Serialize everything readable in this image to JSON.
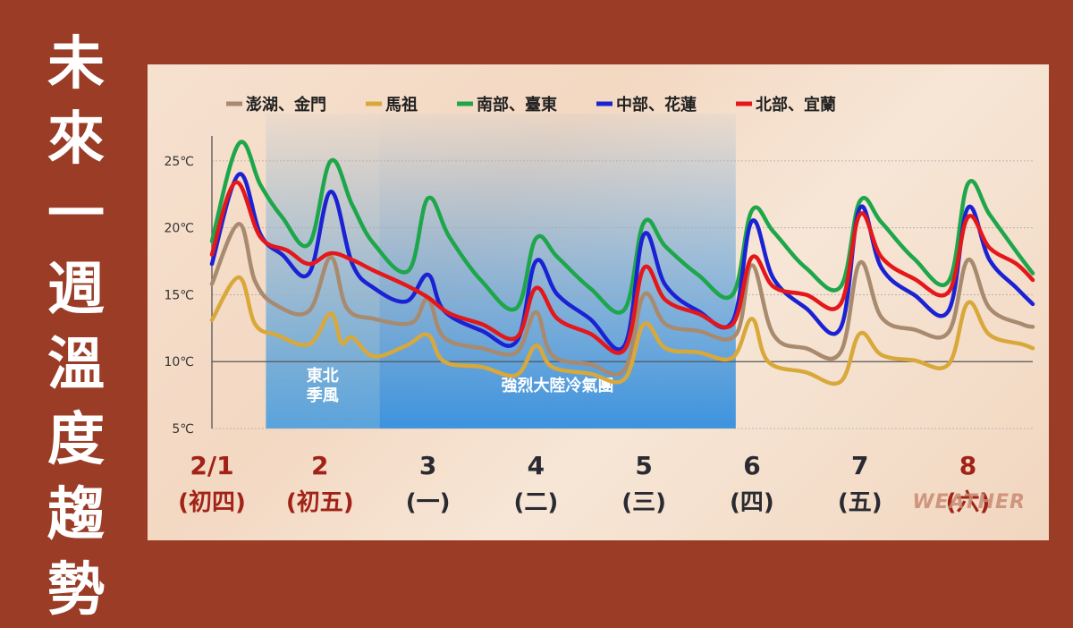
{
  "title_chars": [
    "未",
    "來",
    "一",
    "週",
    "溫",
    "度",
    "趨",
    "勢"
  ],
  "watermark": "WEATHER",
  "chart_data": {
    "type": "line",
    "unit": "℃",
    "ylim": [
      5,
      27
    ],
    "yticks": [
      5,
      10,
      15,
      20,
      25
    ],
    "ytick_labels": [
      "5℃",
      "10℃",
      "15℃",
      "20℃",
      "25℃"
    ],
    "x_range": [
      0,
      7.6
    ],
    "days": [
      {
        "date": "2/1",
        "weekday": "(初四)",
        "x": 0.0,
        "color": "#a12318"
      },
      {
        "date": "2",
        "weekday": "(初五)",
        "x": 1.0,
        "color": "#a12318"
      },
      {
        "date": "3",
        "weekday": "(一)",
        "x": 2.0,
        "color": "#2a2a33"
      },
      {
        "date": "4",
        "weekday": "(二)",
        "x": 3.0,
        "color": "#2a2a33"
      },
      {
        "date": "5",
        "weekday": "(三)",
        "x": 4.0,
        "color": "#2a2a33"
      },
      {
        "date": "6",
        "weekday": "(四)",
        "x": 5.0,
        "color": "#2a2a33"
      },
      {
        "date": "7",
        "weekday": "(五)",
        "x": 6.0,
        "color": "#2a2a33"
      },
      {
        "date": "8",
        "weekday": "(六)",
        "x": 7.0,
        "color": "#a12318"
      }
    ],
    "shaded_regions": [
      {
        "label_lines": [
          "東北",
          "季風"
        ],
        "x_start": 0.5,
        "x_end": 1.55,
        "color": "#5aa3dc"
      },
      {
        "label_lines": [
          "強烈大陸冷氣團"
        ],
        "x_start": 1.55,
        "x_end": 4.85,
        "color": "#3d93de"
      }
    ],
    "series": [
      {
        "name": "澎湖、金門",
        "color": "#a88a6f",
        "points": [
          [
            0.0,
            15.8
          ],
          [
            0.25,
            20.3
          ],
          [
            0.4,
            16.0
          ],
          [
            0.6,
            14.2
          ],
          [
            0.9,
            13.8
          ],
          [
            1.1,
            17.8
          ],
          [
            1.25,
            14.0
          ],
          [
            1.5,
            13.2
          ],
          [
            1.85,
            12.9
          ],
          [
            2.0,
            14.7
          ],
          [
            2.15,
            11.8
          ],
          [
            2.5,
            11.0
          ],
          [
            2.82,
            10.7
          ],
          [
            3.0,
            13.7
          ],
          [
            3.15,
            10.5
          ],
          [
            3.5,
            9.8
          ],
          [
            3.82,
            9.4
          ],
          [
            4.0,
            15.0
          ],
          [
            4.2,
            12.8
          ],
          [
            4.5,
            12.3
          ],
          [
            4.85,
            12.0
          ],
          [
            5.0,
            17.2
          ],
          [
            5.2,
            12.0
          ],
          [
            5.5,
            11.0
          ],
          [
            5.82,
            10.7
          ],
          [
            6.0,
            17.4
          ],
          [
            6.2,
            13.3
          ],
          [
            6.5,
            12.4
          ],
          [
            6.82,
            12.2
          ],
          [
            7.0,
            17.6
          ],
          [
            7.2,
            14.0
          ],
          [
            7.5,
            12.8
          ],
          [
            7.6,
            12.6
          ]
        ]
      },
      {
        "name": "馬祖",
        "color": "#d9a83b",
        "points": [
          [
            0.0,
            13.1
          ],
          [
            0.25,
            16.3
          ],
          [
            0.4,
            12.8
          ],
          [
            0.6,
            12.0
          ],
          [
            0.9,
            11.3
          ],
          [
            1.1,
            13.6
          ],
          [
            1.2,
            11.4
          ],
          [
            1.3,
            11.8
          ],
          [
            1.5,
            10.4
          ],
          [
            1.8,
            11.2
          ],
          [
            2.0,
            12.0
          ],
          [
            2.15,
            10.0
          ],
          [
            2.5,
            9.6
          ],
          [
            2.82,
            9.0
          ],
          [
            3.0,
            11.2
          ],
          [
            3.15,
            9.6
          ],
          [
            3.5,
            9.1
          ],
          [
            3.82,
            8.7
          ],
          [
            4.0,
            12.8
          ],
          [
            4.2,
            11.0
          ],
          [
            4.5,
            10.7
          ],
          [
            4.82,
            10.3
          ],
          [
            5.0,
            13.2
          ],
          [
            5.15,
            10.0
          ],
          [
            5.5,
            9.2
          ],
          [
            5.82,
            8.5
          ],
          [
            6.0,
            12.1
          ],
          [
            6.2,
            10.5
          ],
          [
            6.5,
            10.1
          ],
          [
            6.82,
            9.8
          ],
          [
            7.0,
            14.4
          ],
          [
            7.2,
            12.0
          ],
          [
            7.5,
            11.3
          ],
          [
            7.6,
            11.0
          ]
        ]
      },
      {
        "name": "南部、臺東",
        "color": "#1ea64b",
        "points": [
          [
            0.0,
            19.0
          ],
          [
            0.25,
            26.3
          ],
          [
            0.45,
            23.2
          ],
          [
            0.65,
            20.8
          ],
          [
            0.9,
            18.8
          ],
          [
            1.1,
            25.0
          ],
          [
            1.3,
            21.7
          ],
          [
            1.5,
            18.8
          ],
          [
            1.82,
            16.8
          ],
          [
            2.0,
            22.2
          ],
          [
            2.2,
            19.3
          ],
          [
            2.5,
            16.0
          ],
          [
            2.82,
            14.0
          ],
          [
            3.0,
            19.2
          ],
          [
            3.2,
            17.8
          ],
          [
            3.5,
            15.5
          ],
          [
            3.82,
            13.9
          ],
          [
            4.0,
            20.4
          ],
          [
            4.2,
            18.6
          ],
          [
            4.5,
            16.5
          ],
          [
            4.82,
            15.0
          ],
          [
            5.0,
            21.3
          ],
          [
            5.2,
            19.7
          ],
          [
            5.5,
            17.0
          ],
          [
            5.82,
            15.6
          ],
          [
            6.0,
            22.0
          ],
          [
            6.2,
            20.4
          ],
          [
            6.5,
            17.7
          ],
          [
            6.82,
            16.0
          ],
          [
            7.0,
            23.3
          ],
          [
            7.2,
            21.0
          ],
          [
            7.45,
            18.2
          ],
          [
            7.6,
            16.6
          ]
        ]
      },
      {
        "name": "中部、花蓮",
        "color": "#1b22d4",
        "points": [
          [
            0.0,
            17.3
          ],
          [
            0.25,
            24.0
          ],
          [
            0.45,
            19.5
          ],
          [
            0.65,
            18.0
          ],
          [
            0.9,
            16.6
          ],
          [
            1.1,
            22.7
          ],
          [
            1.3,
            17.3
          ],
          [
            1.5,
            15.5
          ],
          [
            1.8,
            14.5
          ],
          [
            2.0,
            16.5
          ],
          [
            2.15,
            13.8
          ],
          [
            2.5,
            12.3
          ],
          [
            2.82,
            11.5
          ],
          [
            3.0,
            17.5
          ],
          [
            3.2,
            15.0
          ],
          [
            3.5,
            13.2
          ],
          [
            3.82,
            11.2
          ],
          [
            4.0,
            19.5
          ],
          [
            4.2,
            15.7
          ],
          [
            4.5,
            13.8
          ],
          [
            4.82,
            13.0
          ],
          [
            5.0,
            20.5
          ],
          [
            5.2,
            16.2
          ],
          [
            5.5,
            14.0
          ],
          [
            5.82,
            12.5
          ],
          [
            6.0,
            21.5
          ],
          [
            6.2,
            17.0
          ],
          [
            6.5,
            15.0
          ],
          [
            6.82,
            13.8
          ],
          [
            7.0,
            21.5
          ],
          [
            7.2,
            17.6
          ],
          [
            7.45,
            15.5
          ],
          [
            7.6,
            14.3
          ]
        ]
      },
      {
        "name": "北部、宜蘭",
        "color": "#e4171b",
        "points": [
          [
            0.0,
            18.0
          ],
          [
            0.22,
            23.4
          ],
          [
            0.45,
            19.3
          ],
          [
            0.7,
            18.3
          ],
          [
            0.9,
            17.3
          ],
          [
            1.1,
            18.1
          ],
          [
            1.3,
            17.6
          ],
          [
            1.5,
            16.8
          ],
          [
            1.8,
            15.7
          ],
          [
            2.0,
            14.8
          ],
          [
            2.2,
            13.6
          ],
          [
            2.5,
            12.8
          ],
          [
            2.82,
            11.8
          ],
          [
            3.0,
            15.5
          ],
          [
            3.2,
            13.2
          ],
          [
            3.5,
            12.1
          ],
          [
            3.82,
            10.9
          ],
          [
            4.0,
            17.0
          ],
          [
            4.2,
            14.6
          ],
          [
            4.5,
            13.6
          ],
          [
            4.82,
            12.8
          ],
          [
            5.0,
            17.8
          ],
          [
            5.2,
            15.6
          ],
          [
            5.5,
            15.0
          ],
          [
            5.82,
            14.3
          ],
          [
            6.0,
            21.0
          ],
          [
            6.2,
            17.8
          ],
          [
            6.5,
            16.2
          ],
          [
            6.82,
            15.2
          ],
          [
            7.0,
            20.8
          ],
          [
            7.2,
            18.5
          ],
          [
            7.45,
            17.3
          ],
          [
            7.6,
            16.1
          ]
        ]
      }
    ]
  }
}
